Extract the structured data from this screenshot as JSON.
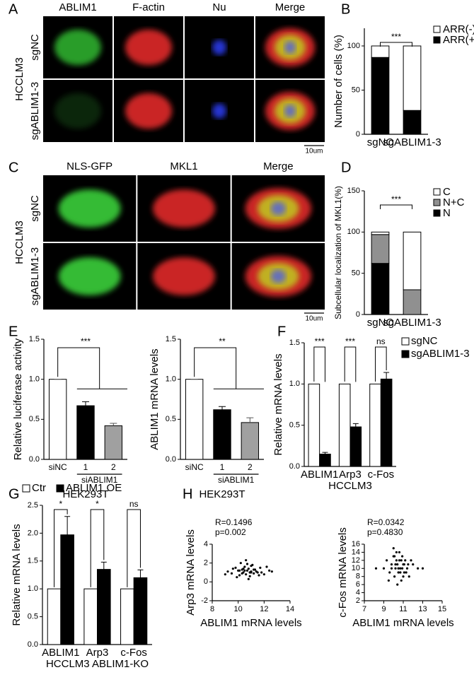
{
  "image_panels": [
    {
      "letter": "A",
      "columns": [
        "ABLIM1",
        "F-actin",
        "Nu",
        "Merge"
      ],
      "group": "HCCLM3",
      "rows": [
        "sgNC",
        "sgABLIM1-3"
      ],
      "scale": "10um"
    },
    {
      "letter": "C",
      "columns": [
        "NLS-GFP",
        "MKL1",
        "Merge"
      ],
      "group": "HCCLM3",
      "rows": [
        "sgNC",
        "sgABLIM1-3"
      ],
      "scale": "10um"
    }
  ],
  "chart_data": [
    {
      "panel": "B",
      "type": "stacked",
      "categories": [
        "sgNC",
        "sgABLIM1-3"
      ],
      "series": [
        {
          "name": "ARR(+)",
          "color": "#000000",
          "values": [
            87,
            27
          ]
        },
        {
          "name": "ARR(-)",
          "color": "#ffffff",
          "values": [
            13,
            73
          ]
        }
      ],
      "ylabel": "Number of cells (%)",
      "ylim": [
        0,
        120
      ],
      "yticks": [
        0,
        50,
        100
      ],
      "annotations": [
        "***"
      ]
    },
    {
      "panel": "D",
      "type": "stacked",
      "categories": [
        "sgNC",
        "sgABLIM1-3"
      ],
      "series": [
        {
          "name": "N",
          "color": "#000000",
          "values": [
            62,
            0
          ]
        },
        {
          "name": "N+C",
          "color": "#909090",
          "values": [
            35,
            30
          ]
        },
        {
          "name": "C",
          "color": "#ffffff",
          "values": [
            3,
            70
          ]
        }
      ],
      "ylabel": "Subcellular localization of MKL1(%)",
      "ylim": [
        0,
        150
      ],
      "yticks": [
        0,
        50,
        100,
        150
      ],
      "annotations": [
        "***"
      ]
    },
    {
      "panel": "E",
      "type": "bar",
      "categories": [
        "siNC",
        "1",
        "2"
      ],
      "values": [
        1,
        0.67,
        0.42
      ],
      "errors": [
        0,
        0.05,
        0.03
      ],
      "colors": [
        "#ffffff",
        "#000000",
        "#a0a0a0"
      ],
      "group_label": "siABLIM1",
      "xlabel": "HEK293T",
      "ylabel": "Relative luciferase activity",
      "ylim": [
        0,
        1.5
      ],
      "yticks": [
        {
          "value": 0,
          "label": "0.0"
        },
        {
          "value": 0.5,
          "label": "0.5"
        },
        {
          "value": 1,
          "label": "1.0"
        },
        {
          "value": 1.5,
          "label": "1.5"
        }
      ],
      "annotations": [
        "***"
      ]
    },
    {
      "type": "bar",
      "categories": [
        "siNC",
        "1",
        "2"
      ],
      "values": [
        1,
        0.62,
        0.46
      ],
      "errors": [
        0,
        0.04,
        0.06
      ],
      "colors": [
        "#ffffff",
        "#000000",
        "#a0a0a0"
      ],
      "group_label": "siABLIM1",
      "xlabel": "HEK293T",
      "ylabel": "ABLIM1 mRNA levels",
      "ylim": [
        0,
        1.5
      ],
      "yticks": [
        {
          "value": 0,
          "label": "0.0"
        },
        {
          "value": 0.5,
          "label": "0.5"
        },
        {
          "value": 1,
          "label": "1.0"
        },
        {
          "value": 1.5,
          "label": "1.5"
        }
      ],
      "annotations": [
        "**"
      ]
    },
    {
      "panel": "F",
      "type": "grouped",
      "categories": [
        "ABLIM1",
        "Arp3",
        "c-Fos"
      ],
      "series": [
        {
          "name": "sgNC",
          "color": "#ffffff",
          "values": [
            1,
            1,
            1
          ]
        },
        {
          "name": "sgABLIM1-3",
          "color": "#000000",
          "values": [
            0.15,
            0.48,
            1.06
          ],
          "errors": [
            0.02,
            0.04,
            0.08
          ]
        }
      ],
      "xlabel": "HCCLM3",
      "ylabel": "Relative mRNA levels",
      "legend": "top-right",
      "ylim": [
        0,
        1.5
      ],
      "yticks": [
        {
          "value": 0,
          "label": "0.0"
        },
        {
          "value": 0.5,
          "label": "0.5"
        },
        {
          "value": 1,
          "label": "1.0"
        },
        {
          "value": 1.5,
          "label": "1.5"
        }
      ],
      "annotations": [
        "***",
        "***",
        "ns"
      ]
    },
    {
      "panel": "G",
      "type": "grouped",
      "categories": [
        "ABLIM1",
        "Arp3",
        "c-Fos"
      ],
      "series": [
        {
          "name": "Ctr",
          "color": "#ffffff",
          "values": [
            1,
            1,
            1
          ]
        },
        {
          "name": "ABLIM1 OE",
          "color": "#000000",
          "values": [
            1.97,
            1.35,
            1.2
          ],
          "errors": [
            0.33,
            0.13,
            0.14
          ]
        }
      ],
      "xlabel": "HCCLM3 ABLIM1-KO",
      "ylabel": "Relative mRNA levels",
      "legend": "top",
      "ylim": [
        0,
        2.5
      ],
      "yticks": [
        {
          "value": 0,
          "label": "0.0"
        },
        {
          "value": 0.5,
          "label": "0.5"
        },
        {
          "value": 1,
          "label": "1.0"
        },
        {
          "value": 1.5,
          "label": "1.5"
        },
        {
          "value": 2,
          "label": "2.0"
        },
        {
          "value": 2.5,
          "label": "2.5"
        }
      ],
      "annotations": [
        "*",
        "*",
        "ns"
      ]
    },
    {
      "panel": "H",
      "type": "scatter",
      "xlabel": "ABLIM1 mRNA levels",
      "ylabel": "Arp3 mRNA levels",
      "annotations": [
        "R=0.1496",
        "p=0.002"
      ],
      "xlim": [
        8,
        14
      ],
      "xticks": [
        8,
        10,
        12,
        14
      ],
      "ylim": [
        -2,
        4
      ],
      "yticks": [
        -2,
        0,
        2,
        4
      ],
      "x": [
        9.2,
        9.5,
        9.8,
        10.0,
        10.1,
        10.3,
        10.4,
        10.5,
        10.6,
        10.7,
        10.8,
        10.9,
        11.0,
        11.1,
        11.2,
        11.3,
        11.5,
        11.7,
        12.0,
        12.4,
        9.9,
        10.2,
        10.5,
        10.8,
        11.0,
        11.4,
        10.6,
        10.3,
        11.8,
        12.2,
        9.6,
        10.9,
        10.1,
        11.6,
        10.7,
        11.2,
        12.6,
        9.0,
        10.4,
        11.0
      ],
      "y": [
        1.1,
        0.9,
        1.5,
        1.2,
        0.7,
        1.3,
        1.0,
        1.6,
        0.8,
        1.2,
        1.4,
        0.6,
        1.1,
        1.8,
        0.9,
        1.3,
        1.0,
        1.5,
        0.8,
        1.2,
        0.5,
        2.0,
        1.2,
        0.3,
        1.7,
        1.1,
        2.3,
        0.9,
        1.0,
        1.6,
        1.4,
        1.0,
        1.2,
        0.7,
        1.9,
        1.3,
        1.1,
        0.8,
        1.4,
        1.0
      ]
    },
    {
      "type": "scatter",
      "xlabel": "ABLIM1 mRNA levels",
      "ylabel": "c-Fos mRNA levels",
      "annotations": [
        "R=0.0342",
        "p=0.4830"
      ],
      "xlim": [
        7,
        15
      ],
      "xticks": [
        7,
        9,
        11,
        13,
        15
      ],
      "ylim": [
        2,
        16
      ],
      "yticks": [
        2,
        4,
        6,
        8,
        10,
        12,
        14,
        16
      ],
      "x": [
        9.0,
        9.3,
        9.6,
        9.8,
        10.0,
        10.1,
        10.2,
        10.3,
        10.4,
        10.5,
        10.6,
        10.7,
        10.8,
        10.9,
        11.0,
        11.1,
        11.2,
        11.4,
        11.6,
        12.0,
        12.5,
        9.5,
        10.0,
        10.5,
        10.8,
        11.3,
        10.2,
        10.6,
        11.0,
        9.8,
        10.4,
        11.8,
        10.9,
        10.1,
        11.5,
        13.0,
        8.2,
        10.7,
        10.3,
        11.1
      ],
      "y": [
        10,
        12,
        9,
        11,
        13,
        8,
        10,
        14,
        11,
        9,
        12,
        10,
        7,
        13,
        11,
        9,
        12,
        10,
        8,
        11,
        10,
        7,
        15,
        10,
        12,
        9,
        11,
        14,
        8,
        10,
        6,
        12,
        10,
        13,
        11,
        10,
        10,
        9,
        12,
        11
      ]
    }
  ]
}
